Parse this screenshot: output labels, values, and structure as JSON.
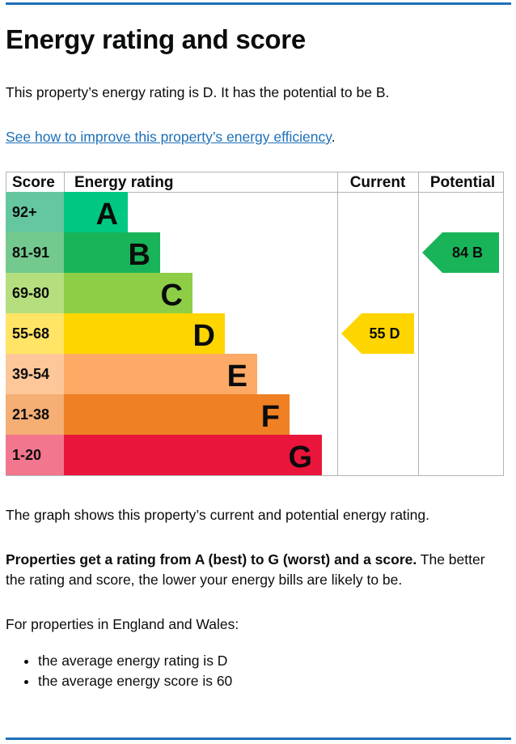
{
  "heading": "Energy rating and score",
  "intro": "This property’s energy rating is D. It has the potential to be B.",
  "link_text": "See how to improve this property’s energy efficiency",
  "link_suffix": ".",
  "graph_note": "The graph shows this property’s current and potential energy rating.",
  "rating_bold": "Properties get a rating from A (best) to G (worst) and a score.",
  "rating_rest": " The better the rating and score, the lower your energy bills are likely to be.",
  "avg_intro": "For properties in England and Wales:",
  "averages": [
    "the average energy rating is D",
    "the average energy score is 60"
  ],
  "chart_data": {
    "type": "table",
    "columns": [
      "Score",
      "Energy rating",
      "Current",
      "Potential"
    ],
    "bands": [
      {
        "band": "A",
        "score": "92+",
        "color": "#00c781",
        "score_color": "#64c7a0"
      },
      {
        "band": "B",
        "score": "81-91",
        "color": "#19b459",
        "score_color": "#73c98e"
      },
      {
        "band": "C",
        "score": "69-80",
        "color": "#8dce46",
        "score_color": "#b5df7f"
      },
      {
        "band": "D",
        "score": "55-68",
        "color": "#ffd500",
        "score_color": "#ffe466"
      },
      {
        "band": "E",
        "score": "39-54",
        "color": "#fcaa65",
        "score_color": "#fdc79a"
      },
      {
        "band": "F",
        "score": "21-38",
        "color": "#ef8023",
        "score_color": "#f5ae74"
      },
      {
        "band": "G",
        "score": "1-20",
        "color": "#e9153b",
        "score_color": "#f2768e"
      }
    ],
    "current": {
      "score": 55,
      "band": "D",
      "label": "55  D",
      "color": "#ffd500"
    },
    "potential": {
      "score": 84,
      "band": "B",
      "label": "84  B",
      "color": "#19b459"
    }
  }
}
